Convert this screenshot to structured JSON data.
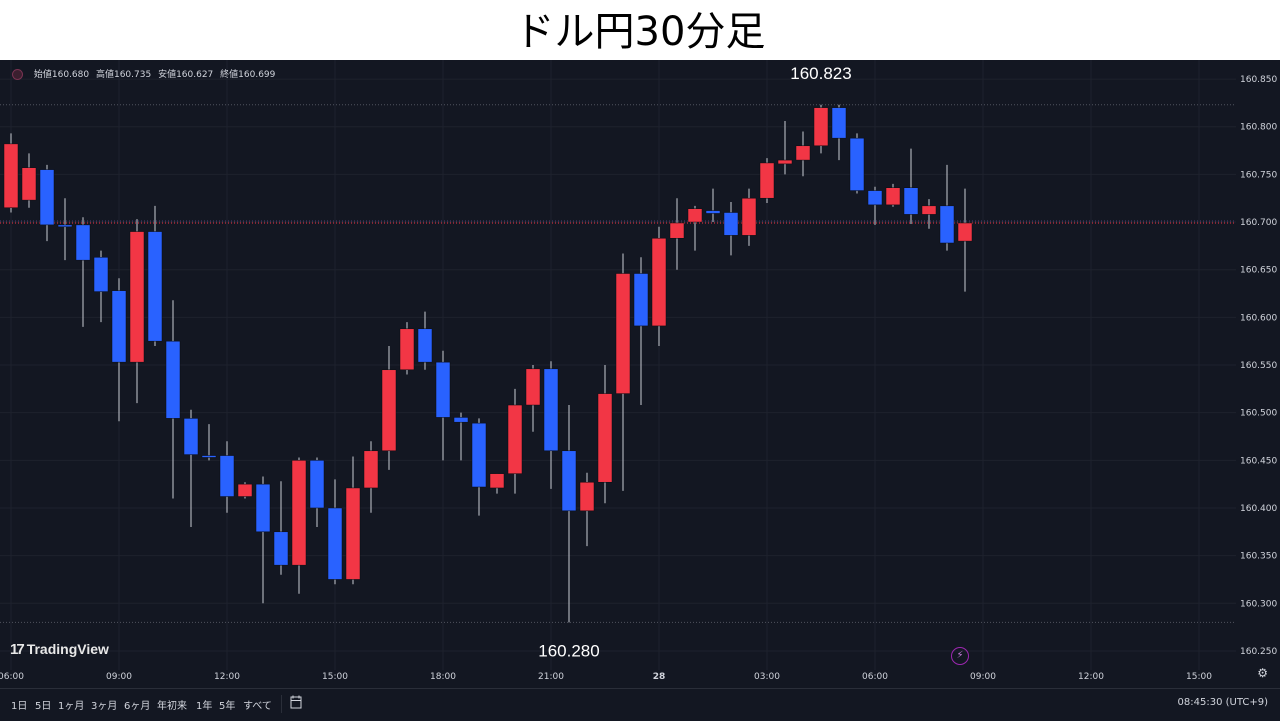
{
  "page": {
    "title": "ドル円30分足"
  },
  "legend": {
    "open": "始値160.680",
    "high": "高値160.735",
    "low": "安値160.627",
    "close": "終値160.699"
  },
  "colors": {
    "up": "#f23645",
    "down": "#2962ff",
    "background": "#131722",
    "grid": "#1e222d",
    "text": "#d1d4dc"
  },
  "branding": {
    "logo_text": "TradingView"
  },
  "range_buttons": [
    "1日",
    "5日",
    "1ヶ月",
    "3ヶ月",
    "6ヶ月",
    "年初来",
    "1年",
    "5年",
    "すべて"
  ],
  "clock": "08:45:30 (UTC+9)",
  "chart_data": {
    "type": "candlestick",
    "y_axis": {
      "min": 160.23,
      "max": 160.87,
      "ticks": [
        "160.850",
        "160.800",
        "160.750",
        "160.700",
        "160.650",
        "160.600",
        "160.550",
        "160.500",
        "160.450",
        "160.400",
        "160.350",
        "160.300",
        "160.250"
      ]
    },
    "x_axis": {
      "ticks": [
        {
          "label": "06:00",
          "index": 0
        },
        {
          "label": "09:00",
          "index": 6
        },
        {
          "label": "12:00",
          "index": 12
        },
        {
          "label": "15:00",
          "index": 18
        },
        {
          "label": "18:00",
          "index": 24
        },
        {
          "label": "21:00",
          "index": 30
        },
        {
          "label": "28",
          "index": 36
        },
        {
          "label": "03:00",
          "index": 42
        },
        {
          "label": "06:00",
          "index": 48
        },
        {
          "label": "09:00",
          "index": 54
        },
        {
          "label": "12:00",
          "index": 60
        },
        {
          "label": "15:00",
          "index": 66
        }
      ]
    },
    "annotations": [
      {
        "text": "160.823",
        "value": 160.823,
        "index": 45,
        "position": "above"
      },
      {
        "text": "160.280",
        "value": 160.28,
        "index": 31,
        "position": "below"
      }
    ],
    "current_price_line": 160.699,
    "candles": [
      {
        "o": 160.715,
        "h": 160.793,
        "l": 160.71,
        "c": 160.782
      },
      {
        "o": 160.723,
        "h": 160.772,
        "l": 160.715,
        "c": 160.757
      },
      {
        "o": 160.755,
        "h": 160.76,
        "l": 160.68,
        "c": 160.697
      },
      {
        "o": 160.697,
        "h": 160.725,
        "l": 160.66,
        "c": 160.695
      },
      {
        "o": 160.697,
        "h": 160.705,
        "l": 160.59,
        "c": 160.66
      },
      {
        "o": 160.663,
        "h": 160.67,
        "l": 160.595,
        "c": 160.627
      },
      {
        "o": 160.628,
        "h": 160.641,
        "l": 160.491,
        "c": 160.553
      },
      {
        "o": 160.553,
        "h": 160.703,
        "l": 160.51,
        "c": 160.69
      },
      {
        "o": 160.69,
        "h": 160.717,
        "l": 160.57,
        "c": 160.575
      },
      {
        "o": 160.575,
        "h": 160.618,
        "l": 160.41,
        "c": 160.494
      },
      {
        "o": 160.494,
        "h": 160.503,
        "l": 160.38,
        "c": 160.456
      },
      {
        "o": 160.455,
        "h": 160.488,
        "l": 160.45,
        "c": 160.453
      },
      {
        "o": 160.455,
        "h": 160.47,
        "l": 160.395,
        "c": 160.412
      },
      {
        "o": 160.412,
        "h": 160.427,
        "l": 160.41,
        "c": 160.425
      },
      {
        "o": 160.425,
        "h": 160.433,
        "l": 160.3,
        "c": 160.375
      },
      {
        "o": 160.375,
        "h": 160.428,
        "l": 160.33,
        "c": 160.34
      },
      {
        "o": 160.34,
        "h": 160.453,
        "l": 160.31,
        "c": 160.45
      },
      {
        "o": 160.45,
        "h": 160.453,
        "l": 160.38,
        "c": 160.4
      },
      {
        "o": 160.4,
        "h": 160.43,
        "l": 160.32,
        "c": 160.325
      },
      {
        "o": 160.325,
        "h": 160.454,
        "l": 160.32,
        "c": 160.421
      },
      {
        "o": 160.421,
        "h": 160.47,
        "l": 160.395,
        "c": 160.46
      },
      {
        "o": 160.46,
        "h": 160.57,
        "l": 160.44,
        "c": 160.545
      },
      {
        "o": 160.545,
        "h": 160.595,
        "l": 160.54,
        "c": 160.588
      },
      {
        "o": 160.588,
        "h": 160.606,
        "l": 160.545,
        "c": 160.553
      },
      {
        "o": 160.553,
        "h": 160.565,
        "l": 160.45,
        "c": 160.495
      },
      {
        "o": 160.495,
        "h": 160.5,
        "l": 160.45,
        "c": 160.49
      },
      {
        "o": 160.489,
        "h": 160.494,
        "l": 160.392,
        "c": 160.422
      },
      {
        "o": 160.421,
        "h": 160.436,
        "l": 160.415,
        "c": 160.436
      },
      {
        "o": 160.436,
        "h": 160.525,
        "l": 160.415,
        "c": 160.508
      },
      {
        "o": 160.508,
        "h": 160.55,
        "l": 160.48,
        "c": 160.546
      },
      {
        "o": 160.546,
        "h": 160.554,
        "l": 160.42,
        "c": 160.46
      },
      {
        "o": 160.46,
        "h": 160.508,
        "l": 160.28,
        "c": 160.397
      },
      {
        "o": 160.397,
        "h": 160.437,
        "l": 160.36,
        "c": 160.427
      },
      {
        "o": 160.427,
        "h": 160.55,
        "l": 160.405,
        "c": 160.52
      },
      {
        "o": 160.52,
        "h": 160.667,
        "l": 160.418,
        "c": 160.646
      },
      {
        "o": 160.646,
        "h": 160.663,
        "l": 160.508,
        "c": 160.591
      },
      {
        "o": 160.591,
        "h": 160.695,
        "l": 160.57,
        "c": 160.683
      },
      {
        "o": 160.683,
        "h": 160.725,
        "l": 160.65,
        "c": 160.699
      },
      {
        "o": 160.7,
        "h": 160.717,
        "l": 160.67,
        "c": 160.714
      },
      {
        "o": 160.712,
        "h": 160.735,
        "l": 160.7,
        "c": 160.709
      },
      {
        "o": 160.71,
        "h": 160.721,
        "l": 160.665,
        "c": 160.686
      },
      {
        "o": 160.686,
        "h": 160.735,
        "l": 160.675,
        "c": 160.725
      },
      {
        "o": 160.725,
        "h": 160.767,
        "l": 160.72,
        "c": 160.762
      },
      {
        "o": 160.761,
        "h": 160.806,
        "l": 160.75,
        "c": 160.765
      },
      {
        "o": 160.765,
        "h": 160.795,
        "l": 160.748,
        "c": 160.78
      },
      {
        "o": 160.78,
        "h": 160.823,
        "l": 160.772,
        "c": 160.82
      },
      {
        "o": 160.82,
        "h": 160.823,
        "l": 160.765,
        "c": 160.788
      },
      {
        "o": 160.788,
        "h": 160.793,
        "l": 160.73,
        "c": 160.733
      },
      {
        "o": 160.733,
        "h": 160.737,
        "l": 160.697,
        "c": 160.718
      },
      {
        "o": 160.718,
        "h": 160.74,
        "l": 160.716,
        "c": 160.736
      },
      {
        "o": 160.736,
        "h": 160.777,
        "l": 160.698,
        "c": 160.708
      },
      {
        "o": 160.708,
        "h": 160.724,
        "l": 160.693,
        "c": 160.717
      },
      {
        "o": 160.717,
        "h": 160.76,
        "l": 160.67,
        "c": 160.678
      },
      {
        "o": 160.68,
        "h": 160.735,
        "l": 160.627,
        "c": 160.699
      }
    ]
  }
}
